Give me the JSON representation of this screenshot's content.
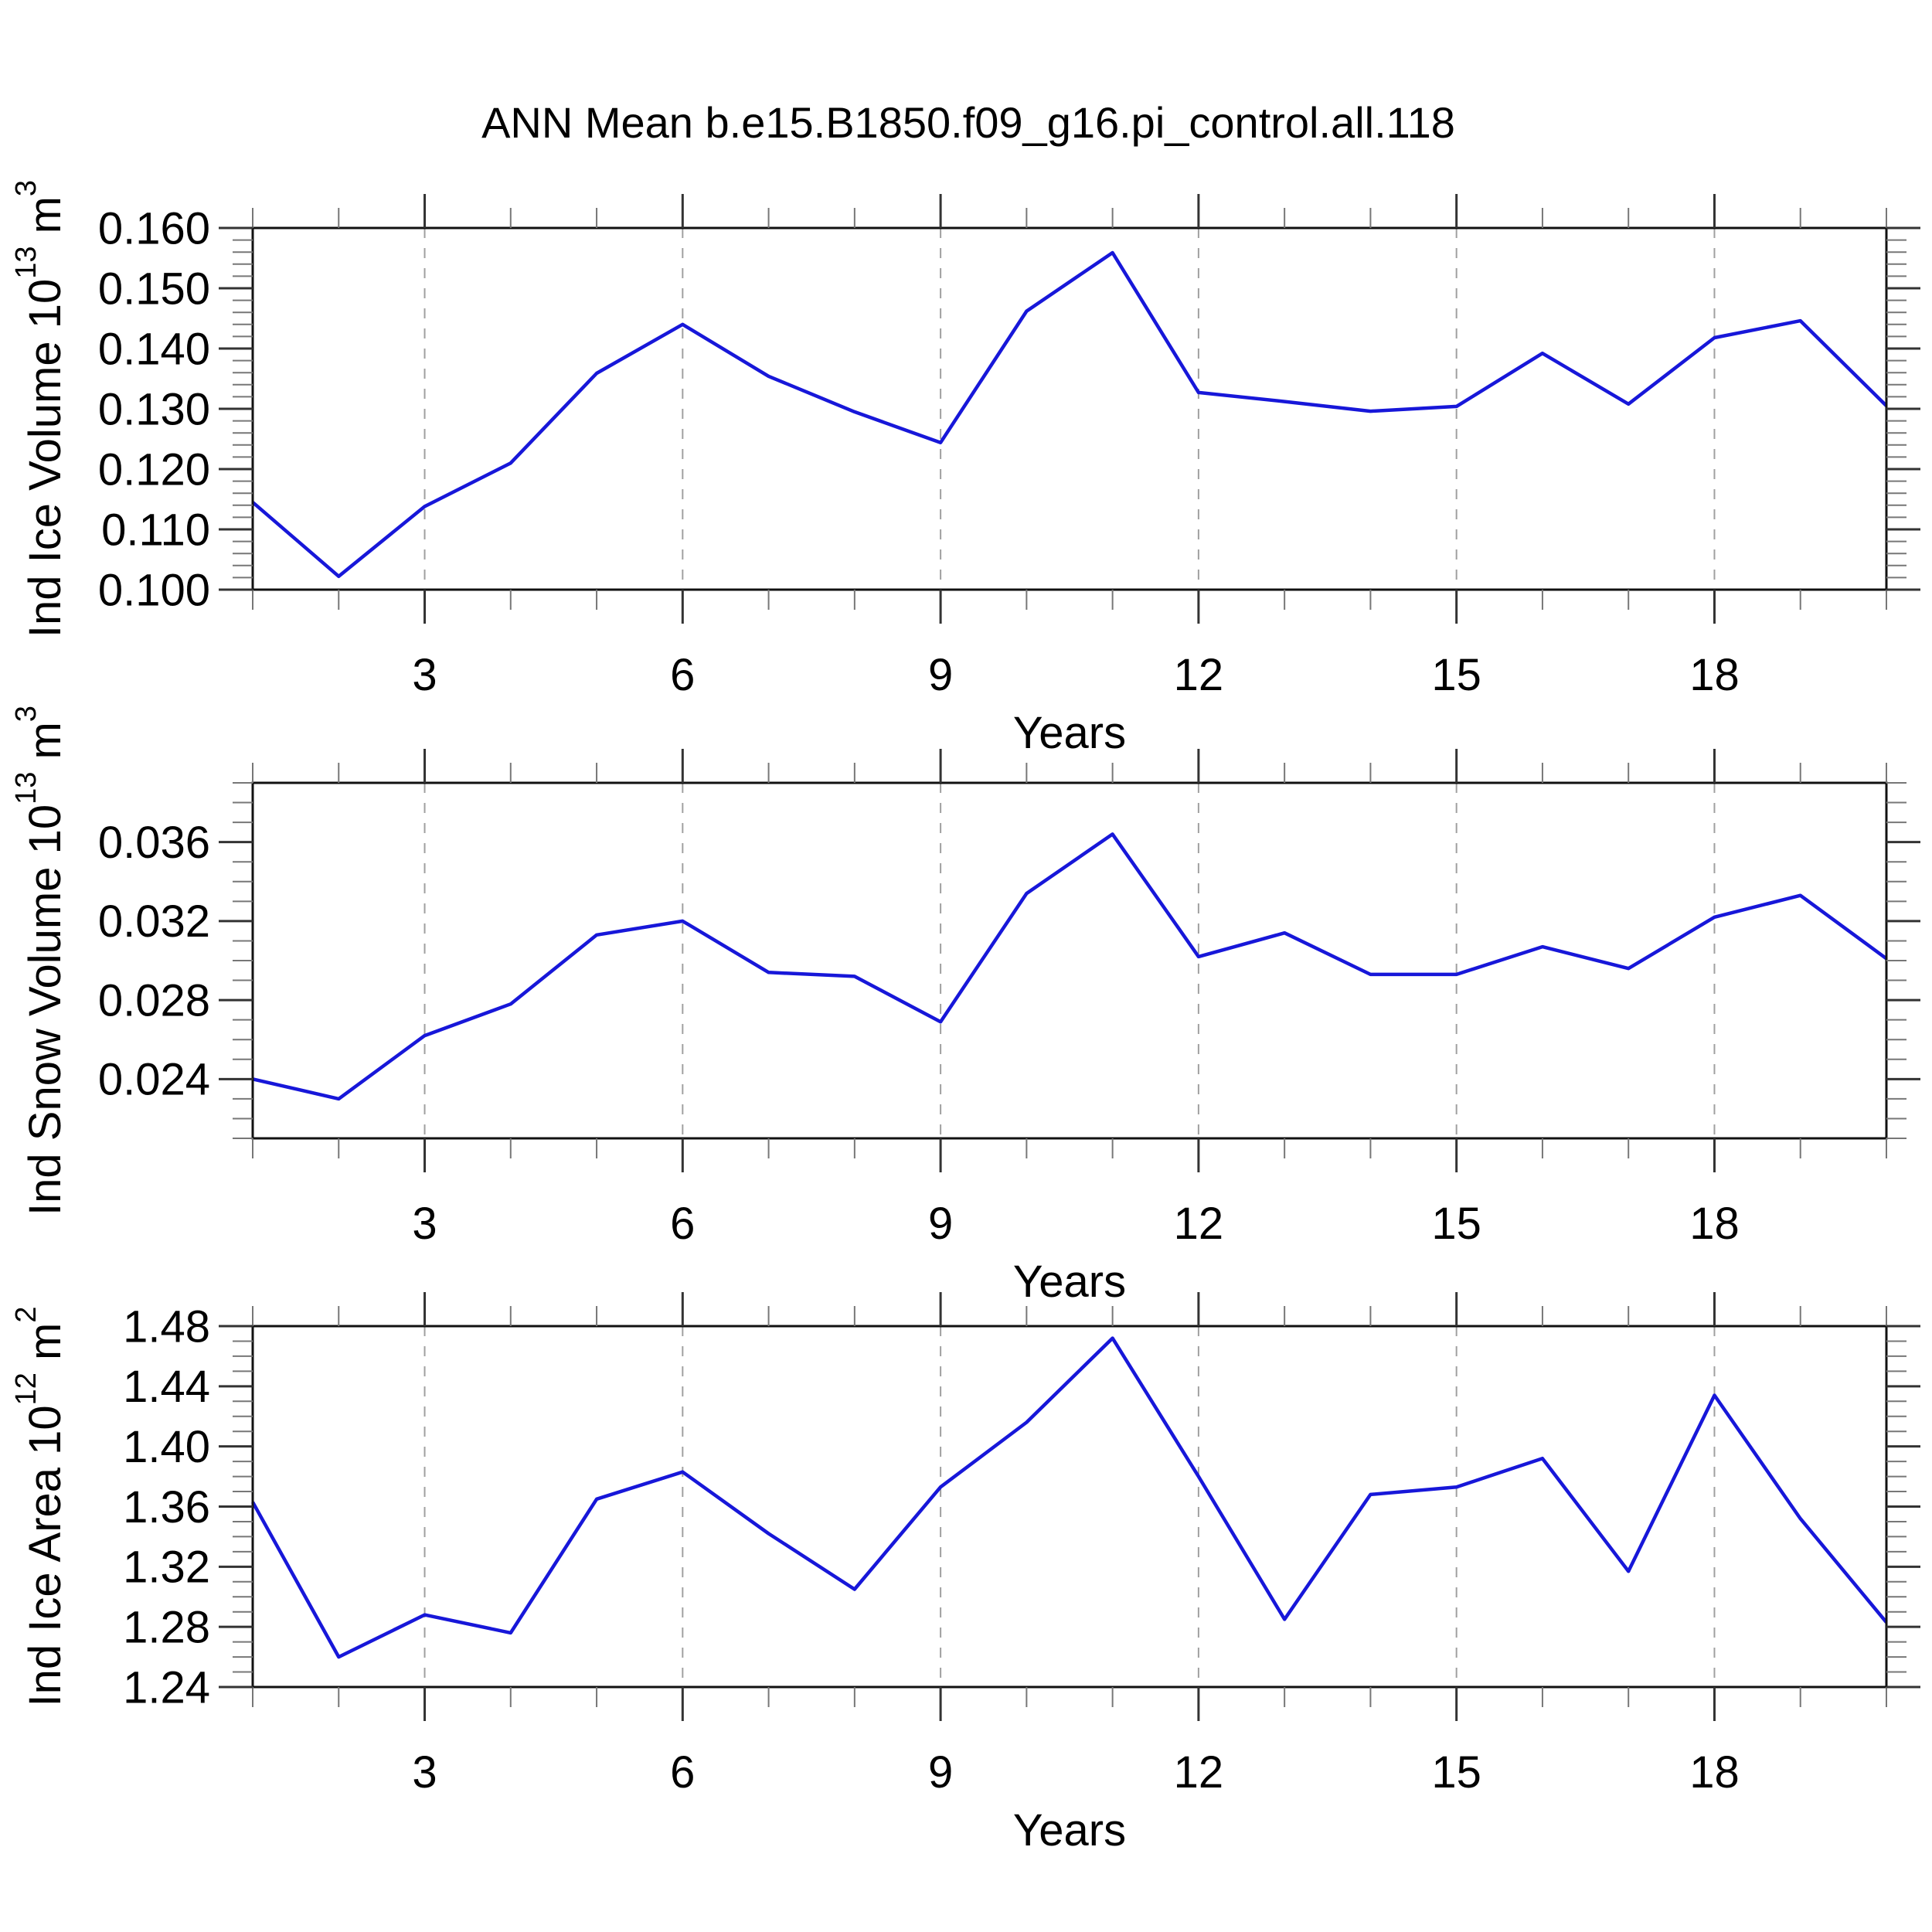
{
  "title": "ANN Mean b.e15.B1850.f09_g16.pi_control.all.118",
  "colors": {
    "series_line": "#1717d9",
    "plot_border": "#111111",
    "major_tick": "#333333",
    "minor_tick": "#777777",
    "gridline": "#a0a0a0",
    "text": "#000000",
    "background": "#ffffff"
  },
  "chart_data": [
    {
      "type": "line",
      "title": "",
      "xlabel": "Years",
      "ylabel_parts": [
        {
          "text": "Ind Ice Volume 10"
        },
        {
          "text": "13",
          "super": true
        },
        {
          "text": " m"
        },
        {
          "text": "3",
          "super": true
        }
      ],
      "x": [
        1,
        2,
        3,
        4,
        5,
        6,
        7,
        8,
        9,
        10,
        11,
        12,
        13,
        14,
        15,
        16,
        17,
        18,
        19,
        20
      ],
      "values": [
        0.1145,
        0.1022,
        0.1138,
        0.121,
        0.1359,
        0.144,
        0.1354,
        0.1295,
        0.1244,
        0.1462,
        0.1559,
        0.1327,
        0.1312,
        0.1296,
        0.1304,
        0.1392,
        0.1308,
        0.1418,
        0.1446,
        0.1305
      ],
      "xlim": [
        1,
        20
      ],
      "ylim": [
        0.1,
        0.16
      ],
      "xticks": [
        3,
        6,
        9,
        12,
        15,
        18
      ],
      "xtick_labels": [
        "3",
        "6",
        "9",
        "12",
        "15",
        "18"
      ],
      "x_minor_step": 1,
      "yticks": [
        0.1,
        0.11,
        0.12,
        0.13,
        0.14,
        0.15,
        0.16
      ],
      "ytick_labels": [
        "0.100",
        "0.110",
        "0.120",
        "0.130",
        "0.140",
        "0.150",
        "0.160"
      ],
      "y_minor_step": 0.002,
      "grid": "vertical-dashed",
      "legend": "none"
    },
    {
      "type": "line",
      "title": "",
      "xlabel": "Years",
      "ylabel_parts": [
        {
          "text": "Ind Snow Volume 10"
        },
        {
          "text": "13",
          "super": true
        },
        {
          "text": " m"
        },
        {
          "text": "3",
          "super": true
        }
      ],
      "x": [
        1,
        2,
        3,
        4,
        5,
        6,
        7,
        8,
        9,
        10,
        11,
        12,
        13,
        14,
        15,
        16,
        17,
        18,
        19,
        20
      ],
      "values": [
        0.024,
        0.023,
        0.0262,
        0.0278,
        0.0313,
        0.032,
        0.0294,
        0.0292,
        0.0269,
        0.0334,
        0.0364,
        0.0302,
        0.0314,
        0.0293,
        0.0293,
        0.0307,
        0.0296,
        0.0322,
        0.0333,
        0.0301
      ],
      "xlim": [
        1,
        20
      ],
      "ylim": [
        0.021,
        0.039
      ],
      "xticks": [
        3,
        6,
        9,
        12,
        15,
        18
      ],
      "xtick_labels": [
        "3",
        "6",
        "9",
        "12",
        "15",
        "18"
      ],
      "x_minor_step": 1,
      "yticks": [
        0.024,
        0.028,
        0.032,
        0.036
      ],
      "ytick_labels": [
        "0.024",
        "0.028",
        "0.032",
        "0.036"
      ],
      "y_minor_step": 0.001,
      "grid": "vertical-dashed",
      "legend": "none"
    },
    {
      "type": "line",
      "title": "",
      "xlabel": "Years",
      "ylabel_parts": [
        {
          "text": "Ind Ice Area 10"
        },
        {
          "text": "12",
          "super": true
        },
        {
          "text": " m"
        },
        {
          "text": "2",
          "super": true
        }
      ],
      "x": [
        1,
        2,
        3,
        4,
        5,
        6,
        7,
        8,
        9,
        10,
        11,
        12,
        13,
        14,
        15,
        16,
        17,
        18,
        19,
        20
      ],
      "values": [
        1.363,
        1.26,
        1.288,
        1.276,
        1.365,
        1.383,
        1.342,
        1.305,
        1.373,
        1.416,
        1.472,
        1.38,
        1.285,
        1.368,
        1.373,
        1.392,
        1.317,
        1.434,
        1.352,
        1.283
      ],
      "xlim": [
        1,
        20
      ],
      "ylim": [
        1.24,
        1.48
      ],
      "xticks": [
        3,
        6,
        9,
        12,
        15,
        18
      ],
      "xtick_labels": [
        "3",
        "6",
        "9",
        "12",
        "15",
        "18"
      ],
      "x_minor_step": 1,
      "yticks": [
        1.24,
        1.28,
        1.32,
        1.36,
        1.4,
        1.44,
        1.48
      ],
      "ytick_labels": [
        "1.24",
        "1.28",
        "1.32",
        "1.36",
        "1.40",
        "1.44",
        "1.48"
      ],
      "y_minor_step": 0.01,
      "grid": "vertical-dashed",
      "legend": "none"
    }
  ]
}
